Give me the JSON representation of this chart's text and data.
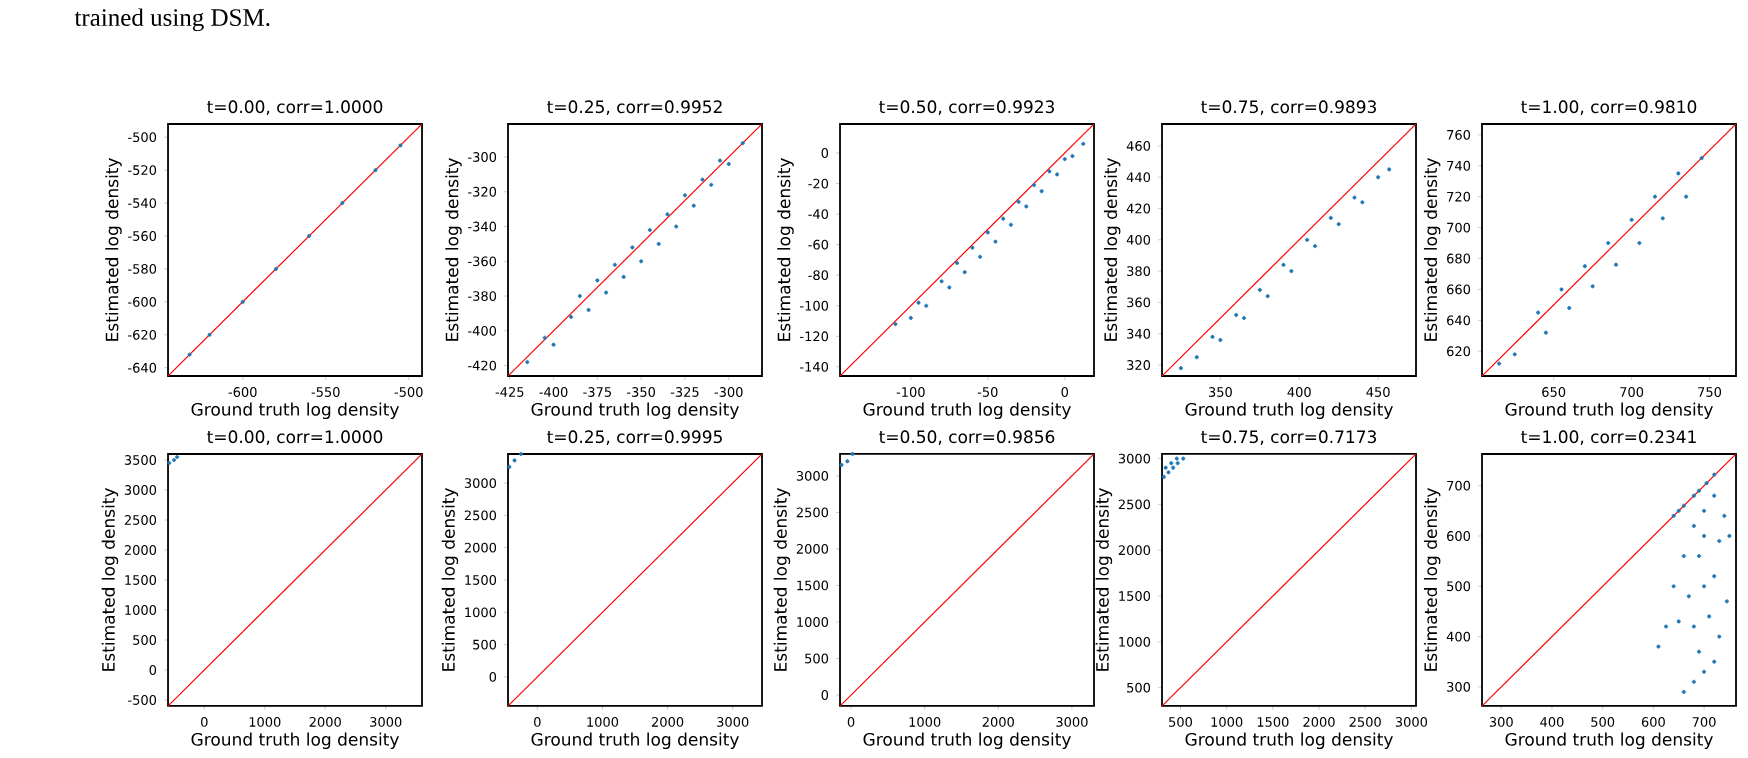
{
  "chart_data": [
    {
      "type": "scatter",
      "title": "t=0.00, corr=1.0000",
      "xlabel": "Ground truth log density",
      "ylabel": "Estimated log density",
      "annotations": [
        "trained using DSM."
      ],
      "xlim": [
        -645,
        -492
      ],
      "ylim": [
        -645,
        -492
      ],
      "xticks": [
        -600,
        -550,
        -500
      ],
      "yticks": [
        -640,
        -620,
        -600,
        -580,
        -560,
        -540,
        -520,
        -500
      ],
      "series": [
        {
          "color": "#1f77b4",
          "marker": "circle",
          "x": [
            -632,
            -620,
            -600,
            -580,
            -560,
            -540,
            -520,
            -505
          ],
          "values": [
            -632,
            -620,
            -600,
            -580,
            -560,
            -540,
            -520,
            -505
          ]
        },
        {
          "type": "line",
          "color": "#ff0000",
          "x": [
            -645,
            -492
          ],
          "values": [
            -645,
            -492
          ]
        }
      ]
    },
    {
      "type": "scatter",
      "title": "t=0.25, corr=0.9952",
      "xlabel": "Ground truth log density",
      "ylabel": "Estimated log density",
      "xlim": [
        -426,
        -281
      ],
      "ylim": [
        -426,
        -281
      ],
      "xticks": [
        -425,
        -400,
        -375,
        -350,
        -325,
        -300
      ],
      "yticks": [
        -420,
        -400,
        -380,
        -360,
        -340,
        -320,
        -300
      ],
      "series": [
        {
          "color": "#1f77b4",
          "marker": "circle",
          "x": [
            -415,
            -405,
            -400,
            -390,
            -385,
            -380,
            -375,
            -370,
            -365,
            -360,
            -355,
            -350,
            -345,
            -340,
            -335,
            -330,
            -325,
            -320,
            -315,
            -310,
            -305,
            -300,
            -292
          ],
          "values": [
            -418,
            -404,
            -408,
            -392,
            -380,
            -388,
            -371,
            -378,
            -362,
            -369,
            -352,
            -360,
            -342,
            -350,
            -333,
            -340,
            -322,
            -328,
            -313,
            -316,
            -302,
            -304,
            -292
          ]
        },
        {
          "type": "line",
          "color": "#ff0000",
          "x": [
            -426,
            -281
          ],
          "values": [
            -426,
            -281
          ]
        }
      ]
    },
    {
      "type": "scatter",
      "title": "t=0.50, corr=0.9923",
      "xlabel": "Ground truth log density",
      "ylabel": "Estimated log density",
      "xlim": [
        -146,
        19
      ],
      "ylim": [
        -146,
        19
      ],
      "xticks": [
        -100,
        -50,
        0
      ],
      "yticks": [
        -140,
        -120,
        -100,
        -80,
        -60,
        -40,
        -20,
        0
      ],
      "series": [
        {
          "color": "#1f77b4",
          "marker": "circle",
          "x": [
            -110,
            -100,
            -95,
            -90,
            -80,
            -75,
            -70,
            -65,
            -60,
            -55,
            -50,
            -45,
            -40,
            -35,
            -30,
            -25,
            -20,
            -15,
            -10,
            -5,
            0,
            5,
            12
          ],
          "values": [
            -112,
            -108,
            -98,
            -100,
            -84,
            -88,
            -72,
            -78,
            -62,
            -68,
            -52,
            -58,
            -43,
            -47,
            -32,
            -35,
            -21,
            -25,
            -12,
            -14,
            -4,
            -2,
            6
          ]
        },
        {
          "type": "line",
          "color": "#ff0000",
          "x": [
            -146,
            19
          ],
          "values": [
            -146,
            19
          ]
        }
      ]
    },
    {
      "type": "scatter",
      "title": "t=0.75, corr=0.9893",
      "xlabel": "Ground truth log density",
      "ylabel": "Estimated log density",
      "xlim": [
        313,
        474
      ],
      "ylim": [
        313,
        474
      ],
      "xticks": [
        350,
        400,
        450
      ],
      "yticks": [
        320,
        340,
        360,
        380,
        400,
        420,
        440,
        460
      ],
      "series": [
        {
          "color": "#1f77b4",
          "marker": "circle",
          "x": [
            325,
            335,
            345,
            350,
            360,
            365,
            375,
            380,
            390,
            395,
            405,
            410,
            420,
            425,
            435,
            440,
            450,
            457
          ],
          "values": [
            318,
            325,
            338,
            336,
            352,
            350,
            368,
            364,
            384,
            380,
            400,
            396,
            414,
            410,
            427,
            424,
            440,
            445
          ]
        },
        {
          "type": "line",
          "color": "#ff0000",
          "x": [
            313,
            474
          ],
          "values": [
            313,
            474
          ]
        }
      ]
    },
    {
      "type": "scatter",
      "title": "t=1.00, corr=0.9810",
      "xlabel": "Ground truth log density",
      "ylabel": "Estimated log density",
      "xlim": [
        604,
        767
      ],
      "ylim": [
        604,
        767
      ],
      "xticks": [
        650,
        700,
        750
      ],
      "yticks": [
        620,
        640,
        660,
        680,
        700,
        720,
        740,
        760
      ],
      "series": [
        {
          "color": "#1f77b4",
          "marker": "circle",
          "x": [
            615,
            625,
            640,
            645,
            655,
            660,
            670,
            675,
            685,
            690,
            700,
            705,
            715,
            720,
            730,
            735,
            745
          ],
          "values": [
            612,
            618,
            645,
            632,
            660,
            648,
            675,
            662,
            690,
            676,
            705,
            690,
            720,
            706,
            735,
            720,
            745
          ]
        },
        {
          "type": "line",
          "color": "#ff0000",
          "x": [
            604,
            767
          ],
          "values": [
            604,
            767
          ]
        }
      ]
    },
    {
      "type": "scatter",
      "title": "t=0.00, corr=1.0000",
      "xlabel": "Ground truth log density",
      "ylabel": "Estimated log density",
      "xlim": [
        -600,
        3600
      ],
      "ylim": [
        -600,
        3600
      ],
      "xticks": [
        0,
        1000,
        2000,
        3000
      ],
      "yticks": [
        -500,
        0,
        500,
        1000,
        1500,
        2000,
        2500,
        3000,
        3500
      ],
      "series": [
        {
          "color": "#1f77b4",
          "marker": "circle",
          "x": [
            -580,
            -500,
            -450
          ],
          "values": [
            3450,
            3500,
            3550
          ]
        },
        {
          "type": "line",
          "color": "#ff0000",
          "x": [
            -600,
            3600
          ],
          "values": [
            -600,
            3600
          ]
        }
      ]
    },
    {
      "type": "scatter",
      "title": "t=0.25, corr=0.9995",
      "xlabel": "Ground truth log density",
      "ylabel": "Estimated log density",
      "xlim": [
        -450,
        3450
      ],
      "ylim": [
        -450,
        3450
      ],
      "xticks": [
        0,
        1000,
        2000,
        3000
      ],
      "yticks": [
        0,
        500,
        1000,
        1500,
        2000,
        2500,
        3000
      ],
      "series": [
        {
          "color": "#1f77b4",
          "marker": "circle",
          "x": [
            -430,
            -350,
            -250
          ],
          "values": [
            3250,
            3350,
            3450
          ]
        },
        {
          "type": "line",
          "color": "#ff0000",
          "x": [
            -450,
            3450
          ],
          "values": [
            -450,
            3450
          ]
        }
      ]
    },
    {
      "type": "scatter",
      "title": "t=0.50, corr=0.9856",
      "xlabel": "Ground truth log density",
      "ylabel": "Estimated log density",
      "xlim": [
        -150,
        3300
      ],
      "ylim": [
        -150,
        3300
      ],
      "xticks": [
        0,
        1000,
        2000,
        3000
      ],
      "yticks": [
        0,
        500,
        1000,
        1500,
        2000,
        2500,
        3000
      ],
      "series": [
        {
          "color": "#1f77b4",
          "marker": "circle",
          "x": [
            -130,
            -50,
            20
          ],
          "values": [
            3150,
            3200,
            3300
          ]
        },
        {
          "type": "line",
          "color": "#ff0000",
          "x": [
            -150,
            3300
          ],
          "values": [
            -150,
            3300
          ]
        }
      ]
    },
    {
      "type": "scatter",
      "title": "t=0.75, corr=0.7173",
      "xlabel": "Ground truth log density",
      "ylabel": "Estimated log density",
      "xlim": [
        300,
        3050
      ],
      "ylim": [
        300,
        3050
      ],
      "xticks": [
        500,
        1000,
        1500,
        2000,
        2500,
        3000
      ],
      "yticks": [
        500,
        1000,
        1500,
        2000,
        2500,
        3000
      ],
      "series": [
        {
          "color": "#1f77b4",
          "marker": "circle",
          "x": [
            320,
            370,
            420,
            470,
            530,
            340,
            400,
            460
          ],
          "values": [
            2800,
            2850,
            2900,
            2950,
            3000,
            2900,
            2950,
            3000
          ]
        },
        {
          "type": "line",
          "color": "#ff0000",
          "x": [
            300,
            3050
          ],
          "values": [
            300,
            3050
          ]
        }
      ]
    },
    {
      "type": "scatter",
      "title": "t=1.00, corr=0.2341",
      "xlabel": "Ground truth log density",
      "ylabel": "Estimated log density",
      "xlim": [
        262,
        763
      ],
      "ylim": [
        262,
        763
      ],
      "xticks": [
        300,
        400,
        500,
        600,
        700
      ],
      "yticks": [
        300,
        400,
        500,
        600,
        700
      ],
      "series": [
        {
          "color": "#1f77b4",
          "marker": "circle",
          "x": [
            640,
            660,
            680,
            690,
            705,
            720,
            650,
            680,
            700,
            720,
            740,
            660,
            690,
            730,
            750,
            640,
            670,
            700,
            720,
            745,
            650,
            680,
            710,
            730,
            690,
            720,
            700,
            680,
            660,
            625,
            610,
            700
          ],
          "values": [
            640,
            660,
            680,
            690,
            705,
            722,
            650,
            620,
            650,
            680,
            640,
            560,
            560,
            590,
            600,
            500,
            480,
            500,
            520,
            470,
            430,
            420,
            440,
            400,
            370,
            350,
            330,
            310,
            290,
            420,
            380,
            600
          ]
        },
        {
          "type": "line",
          "color": "#ff0000",
          "x": [
            262,
            763
          ],
          "values": [
            262,
            763
          ]
        }
      ]
    }
  ]
}
